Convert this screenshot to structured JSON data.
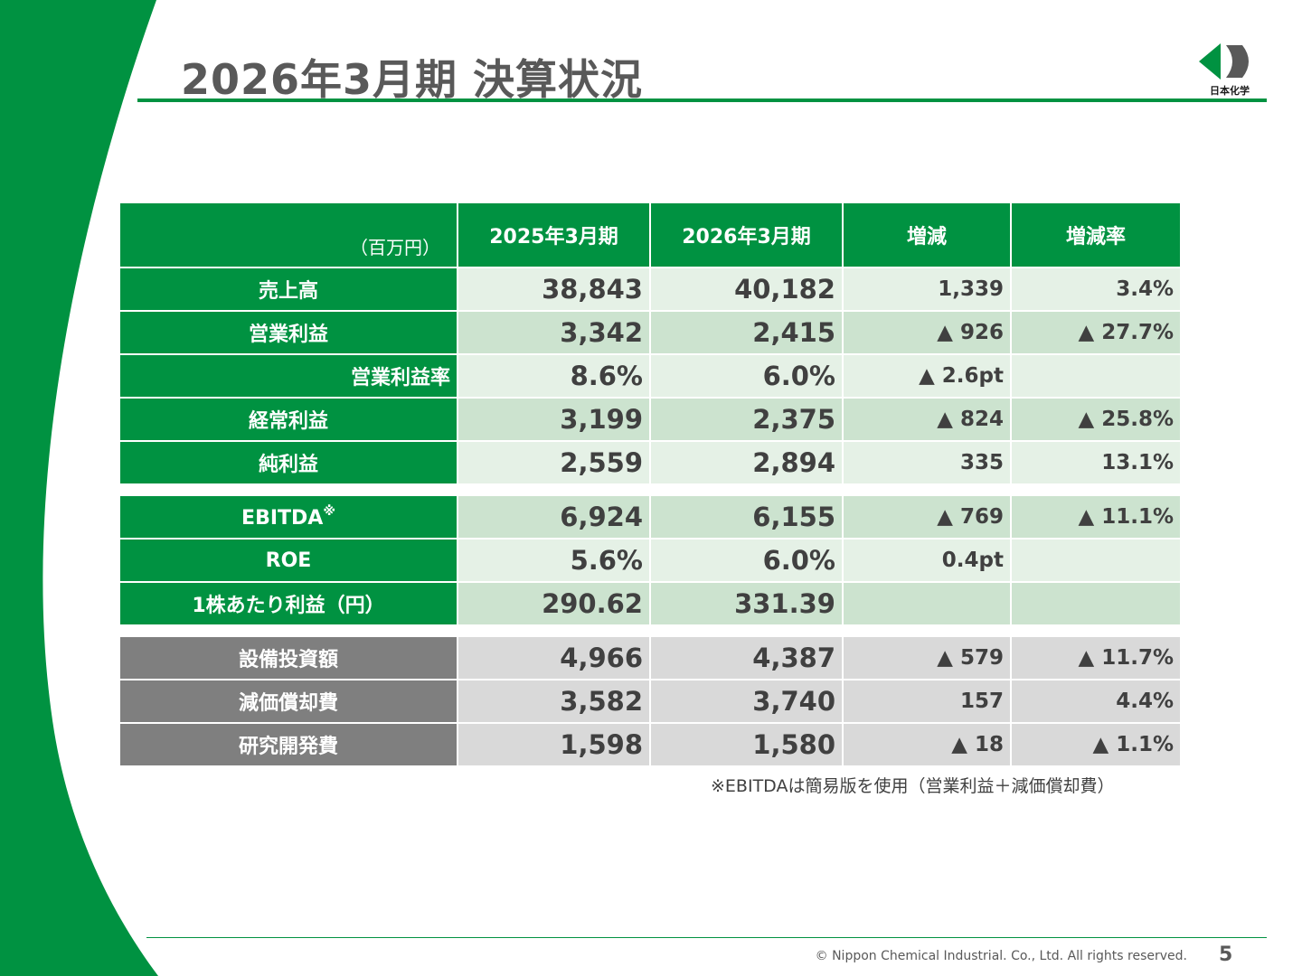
{
  "title": "2026年3月期 決算状況",
  "logo": {
    "icon": "nippon-chemical-logo-icon",
    "text": "日本化学"
  },
  "table": {
    "unit": "（百万円）",
    "headers": [
      "2025年3月期",
      "2026年3月期",
      "増減",
      "増減率"
    ],
    "rows": [
      {
        "label": "売上高",
        "values": [
          "38,843",
          "40,182",
          "1,339",
          "3.4%"
        ]
      },
      {
        "label": "営業利益",
        "values": [
          "3,342",
          "2,415",
          "▲ 926",
          "▲ 27.7%"
        ]
      },
      {
        "label": "営業利益率",
        "values": [
          "8.6%",
          "6.0%",
          "▲ 2.6pt",
          ""
        ]
      },
      {
        "label": "経常利益",
        "values": [
          "3,199",
          "2,375",
          "▲ 824",
          "▲ 25.8%"
        ]
      },
      {
        "label": "純利益",
        "values": [
          "2,559",
          "2,894",
          "335",
          "13.1%"
        ]
      },
      {
        "label": "EBITDA",
        "mark": "※",
        "values": [
          "6,924",
          "6,155",
          "▲ 769",
          "▲ 11.1%"
        ]
      },
      {
        "label": "ROE",
        "values": [
          "5.6%",
          "6.0%",
          "0.4pt",
          ""
        ]
      },
      {
        "label": "1株あたり利益（円）",
        "values": [
          "290.62",
          "331.39",
          "",
          ""
        ]
      },
      {
        "label": "設備投資額",
        "values": [
          "4,966",
          "4,387",
          "▲ 579",
          "▲ 11.7%"
        ]
      },
      {
        "label": "減価償却費",
        "values": [
          "3,582",
          "3,740",
          "157",
          "4.4%"
        ]
      },
      {
        "label": "研究開発費",
        "values": [
          "1,598",
          "1,580",
          "▲ 18",
          "▲ 1.1%"
        ]
      }
    ]
  },
  "note": "※EBITDAは簡易版を使用（営業利益＋減価償却費）",
  "footer": {
    "copyright": "© Nippon Chemical Industrial. Co., Ltd. All rights reserved.",
    "page": "5"
  },
  "colors": {
    "brand_green": "#009241",
    "gray_label": "#7f7f7f",
    "cell_light": "#e5f1e6",
    "cell_dark": "#cce3cf",
    "cell_gray": "#d9d9d9",
    "title_text": "#595959"
  }
}
